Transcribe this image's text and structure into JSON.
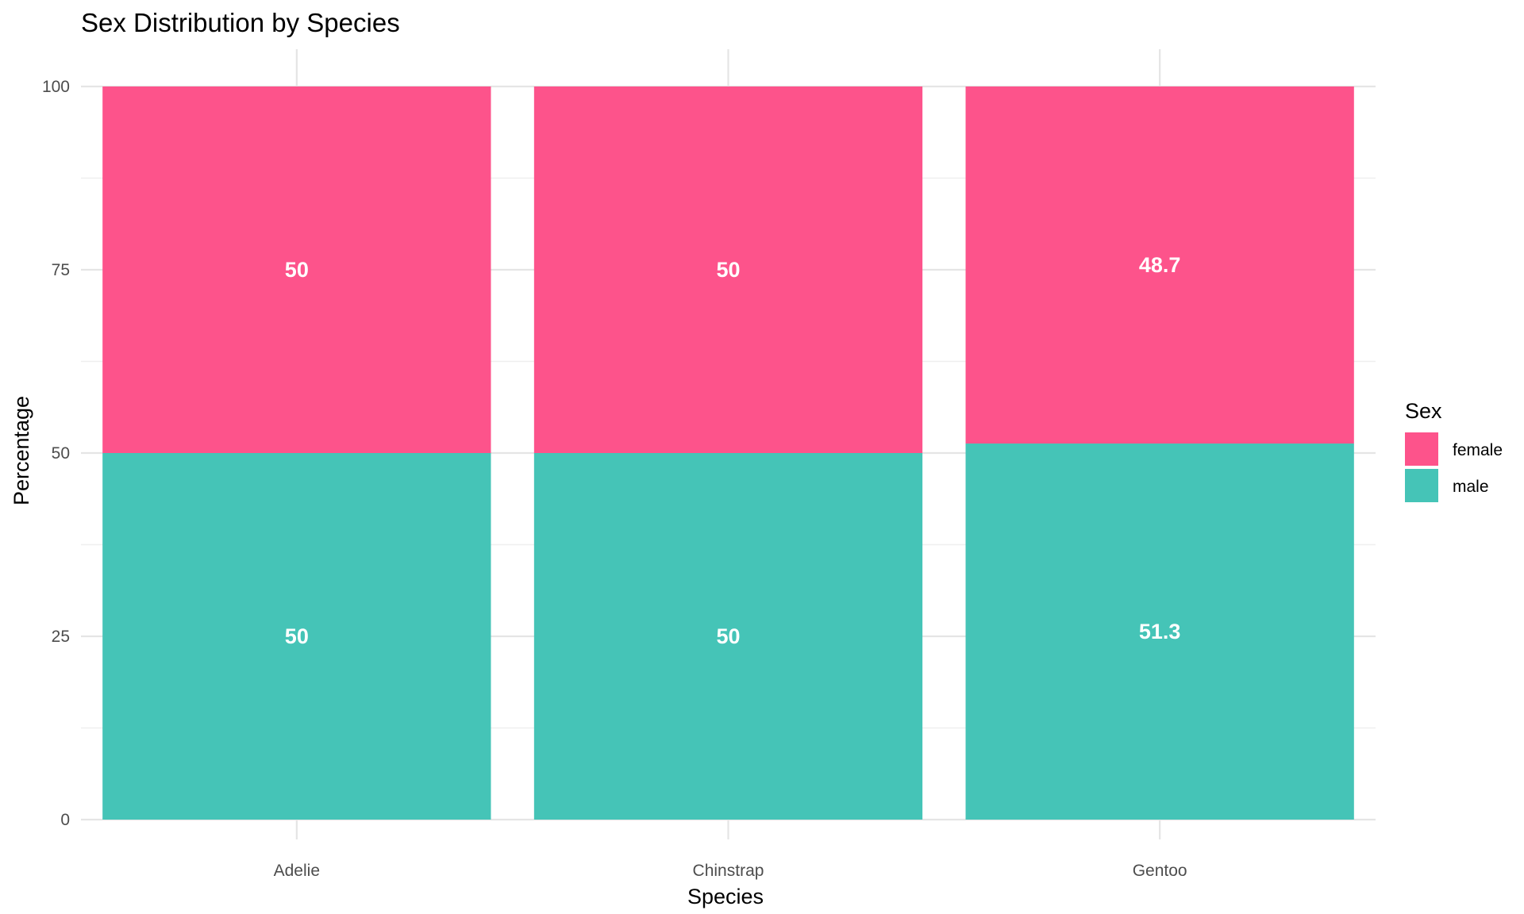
{
  "chart_data": {
    "type": "bar",
    "stacked": true,
    "title": "Sex Distribution by Species",
    "xlabel": "Species",
    "ylabel": "Percentage",
    "ylim": [
      0,
      100
    ],
    "yticks": [
      0,
      25,
      50,
      75,
      100
    ],
    "grid": true,
    "categories": [
      "Adelie",
      "Chinstrap",
      "Gentoo"
    ],
    "series": [
      {
        "name": "male",
        "color": "#45C4B7",
        "values": [
          50,
          50,
          51.3
        ],
        "labels": [
          "50",
          "50",
          "51.3"
        ]
      },
      {
        "name": "female",
        "color": "#FD538B",
        "values": [
          50,
          50,
          48.7
        ],
        "labels": [
          "50",
          "50",
          "48.7"
        ]
      }
    ],
    "legend": {
      "title": "Sex",
      "position": "right",
      "entries": [
        {
          "label": "female",
          "color": "#FD538B"
        },
        {
          "label": "male",
          "color": "#45C4B7"
        }
      ]
    }
  }
}
